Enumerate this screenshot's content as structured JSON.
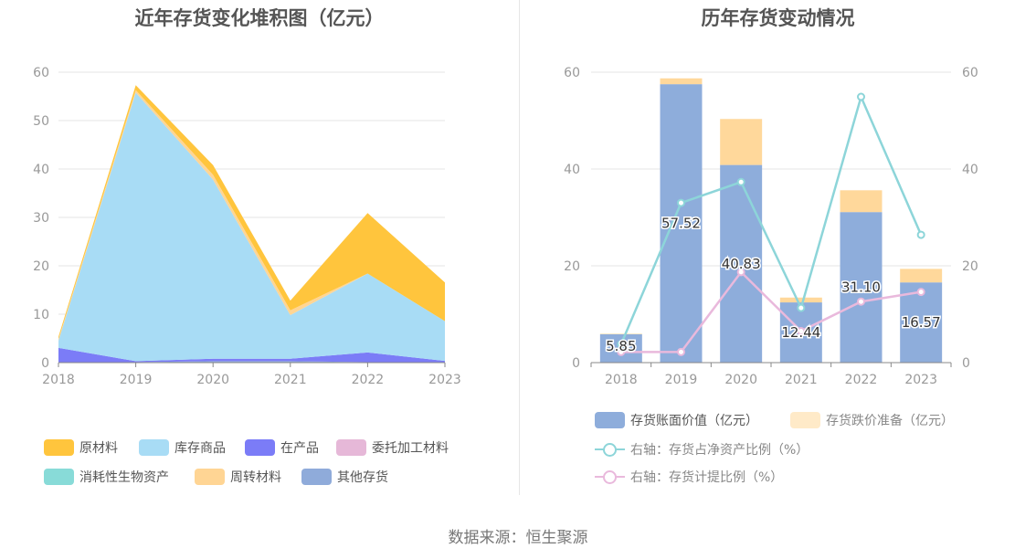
{
  "source_note": "数据来源：恒生聚源",
  "chart_data": [
    {
      "type": "area",
      "stacked": true,
      "title": "近年存货变化堆积图（亿元）",
      "x": [
        "2018",
        "2019",
        "2020",
        "2021",
        "2022",
        "2023"
      ],
      "ylim": [
        0,
        60
      ],
      "yticks": [
        "0",
        "10",
        "20",
        "30",
        "40",
        "50",
        "60"
      ],
      "grid": true,
      "legend_position": "bottom",
      "series": [
        {
          "name": "原材料",
          "color": "#ffc53d",
          "values": [
            0.5,
            1.0,
            2.0,
            2.0,
            12.5,
            8.0
          ]
        },
        {
          "name": "库存商品",
          "color": "#a8dcf5",
          "values": [
            1.5,
            55.5,
            37.0,
            9.0,
            16.3,
            8.2
          ]
        },
        {
          "name": "在产品",
          "color": "#7b7cf7",
          "values": [
            3.0,
            0.2,
            0.5,
            0.5,
            2.0,
            0.3
          ]
        },
        {
          "name": "委托加工材料",
          "color": "#e6b8d8",
          "values": [
            0,
            0,
            0,
            0,
            0,
            0
          ]
        },
        {
          "name": "消耗性生物资产",
          "color": "#88dbd8",
          "values": [
            0,
            0,
            0,
            0,
            0,
            0
          ]
        },
        {
          "name": "周转材料",
          "color": "#ffd594",
          "values": [
            0.3,
            0.5,
            1.0,
            1.0,
            0,
            0
          ]
        },
        {
          "name": "其他存货",
          "color": "#8fabda",
          "values": [
            0.05,
            0.1,
            0.3,
            0.3,
            0.1,
            0.05
          ]
        }
      ]
    },
    {
      "type": "bar",
      "stacked": true,
      "title": "历年存货变动情况",
      "x": [
        "2018",
        "2019",
        "2020",
        "2021",
        "2022",
        "2023"
      ],
      "ylim": [
        0,
        60
      ],
      "yticks": [
        "0",
        "20",
        "40",
        "60"
      ],
      "y2lim": [
        0,
        60
      ],
      "y2ticks": [
        "0",
        "20",
        "40",
        "60"
      ],
      "grid": true,
      "legend_position": "bottom",
      "series": [
        {
          "name": "存货账面价值（亿元）",
          "color": "#8eaddb",
          "values": [
            5.85,
            57.52,
            40.83,
            12.44,
            31.1,
            16.57
          ],
          "labels": [
            "5.85",
            "57.52",
            "40.83",
            "12.44",
            "31.10",
            "16.57"
          ]
        },
        {
          "name": "存货跌价准备（亿元）",
          "color": "#ffd89b",
          "values": [
            0.1,
            1.2,
            9.5,
            1.0,
            4.5,
            2.8
          ]
        }
      ],
      "line_series": [
        {
          "name": "右轴：存货占净资产比例（%）",
          "color": "#8dd5d9",
          "axis": "right",
          "values": [
            3.8,
            33.0,
            37.3,
            11.3,
            54.9,
            26.4
          ]
        },
        {
          "name": "右轴：存货计提比例（%）",
          "color": "#e9b9dc",
          "axis": "right",
          "values": [
            2.2,
            2.2,
            18.7,
            6.5,
            12.6,
            14.6
          ]
        }
      ]
    }
  ]
}
